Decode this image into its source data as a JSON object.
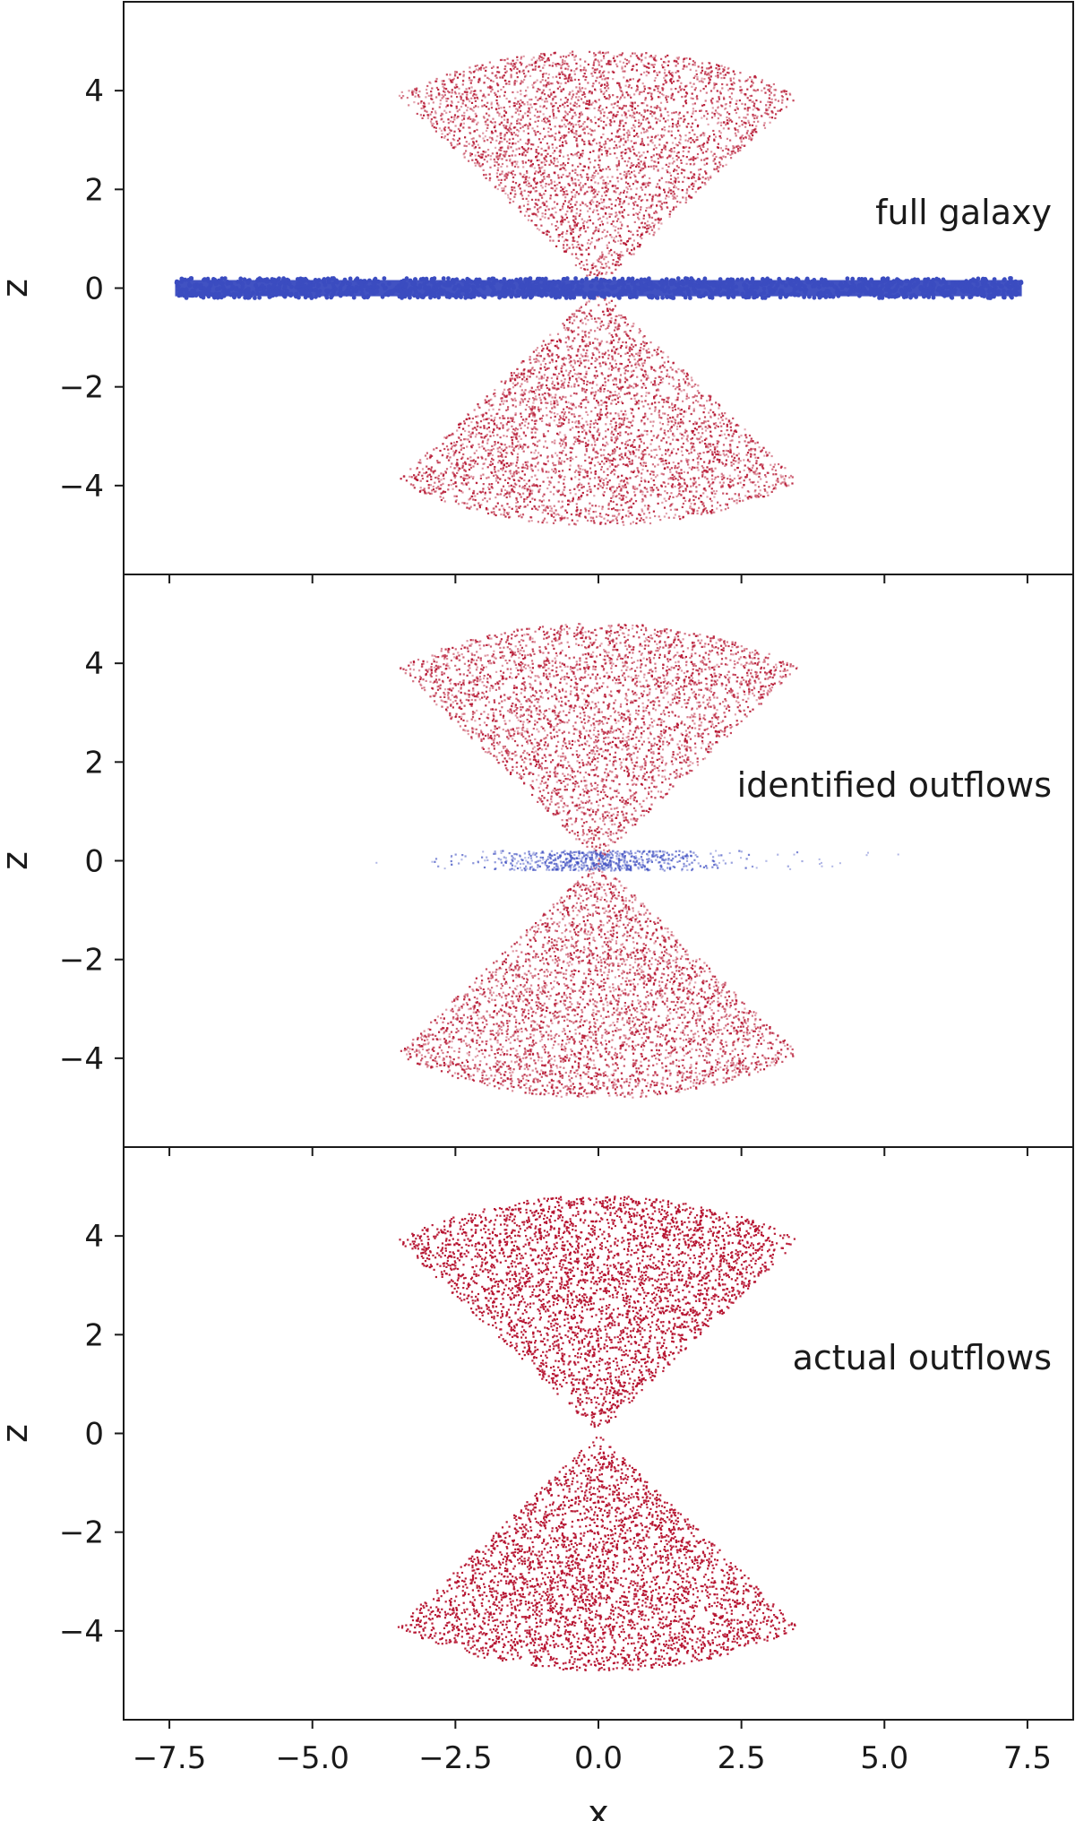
{
  "chart_data": [
    {
      "type": "scatter",
      "panel_label": "full galaxy",
      "xlim": [
        -8.3,
        8.3
      ],
      "ylim": [
        -5.8,
        5.8
      ],
      "x_ticks": [
        -7.5,
        -5.0,
        -2.5,
        0.0,
        2.5,
        5.0,
        7.5
      ],
      "y_ticks": [
        -4,
        -2,
        0,
        2,
        4
      ],
      "x_ticks_visible": false,
      "ylabel": "z",
      "legend": "none",
      "grid": false,
      "series": [
        {
          "color": "#b5122e",
          "shape": "biconical outflow cone",
          "x_range_at_top": [
            -3.4,
            3.4
          ],
          "z_range": [
            -4.8,
            4.8
          ],
          "marker": "small dot"
        },
        {
          "color": "#3b4cc0",
          "shape": "thin disk",
          "x_range": [
            -7.4,
            7.4
          ],
          "z_range": [
            -0.2,
            0.2
          ],
          "marker": "dense dots"
        }
      ]
    },
    {
      "type": "scatter",
      "panel_label": "identified outflows",
      "xlim": [
        -8.3,
        8.3
      ],
      "ylim": [
        -5.8,
        5.8
      ],
      "x_ticks": [
        -7.5,
        -5.0,
        -2.5,
        0.0,
        2.5,
        5.0,
        7.5
      ],
      "y_ticks": [
        -4,
        -2,
        0,
        2,
        4
      ],
      "x_ticks_visible": false,
      "ylabel": "z",
      "legend": "none",
      "grid": false,
      "series": [
        {
          "color": "#b5122e",
          "shape": "biconical outflow cone",
          "x_range_at_top": [
            -3.4,
            3.4
          ],
          "z_range": [
            -4.8,
            4.8
          ],
          "marker": "small dot"
        },
        {
          "color": "#3b4cc0",
          "shape": "sparse disk points",
          "x_range": [
            -4.0,
            5.3
          ],
          "z_range": [
            -0.2,
            0.2
          ],
          "marker": "sparse dots"
        }
      ]
    },
    {
      "type": "scatter",
      "panel_label": "actual outflows",
      "xlim": [
        -8.3,
        8.3
      ],
      "ylim": [
        -5.8,
        5.8
      ],
      "x_ticks": [
        -7.5,
        -5.0,
        -2.5,
        0.0,
        2.5,
        5.0,
        7.5
      ],
      "x_tick_labels": [
        "−7.5",
        "−5.0",
        "−2.5",
        "0.0",
        "2.5",
        "5.0",
        "7.5"
      ],
      "y_ticks": [
        -4,
        -2,
        0,
        2,
        4
      ],
      "xlabel": "x",
      "ylabel": "z",
      "legend": "none",
      "grid": false,
      "series": [
        {
          "color": "#b5122e",
          "shape": "biconical outflow cone",
          "x_range_at_top": [
            -3.4,
            3.4
          ],
          "z_range": [
            -4.8,
            4.8
          ],
          "marker": "small dot"
        }
      ]
    }
  ]
}
